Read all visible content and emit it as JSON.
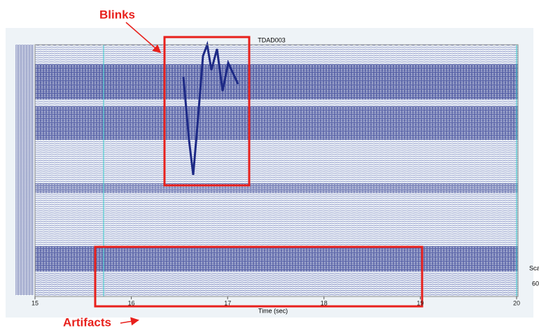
{
  "chart_data": {
    "type": "eeg",
    "title": "TDAD003",
    "xlabel": "Time (sec)",
    "xlim": [
      15,
      20
    ],
    "xticks": [
      15,
      16,
      17,
      18,
      19,
      20
    ],
    "annotations": [
      {
        "text": "Blinks"
      },
      {
        "text": "Artifacts"
      }
    ],
    "side_labels": [
      "Sca",
      "60"
    ]
  }
}
